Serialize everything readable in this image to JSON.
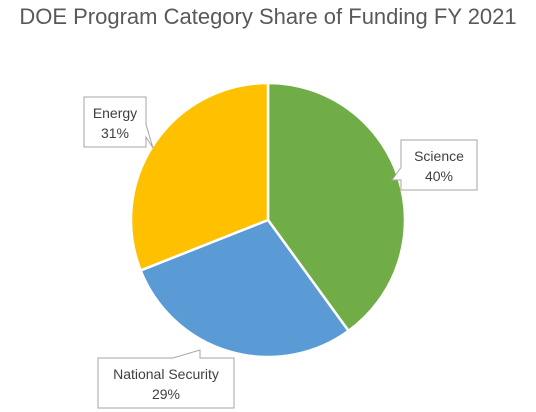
{
  "chart_data": {
    "type": "pie",
    "title": "DOE Program Category Share of Funding FY 2021",
    "slices": [
      {
        "label": "Science",
        "percent_label": "40%",
        "value": 40,
        "color": "#70ad47"
      },
      {
        "label": "National Security",
        "percent_label": "29%",
        "value": 29,
        "color": "#5b9bd5"
      },
      {
        "label": "Energy",
        "percent_label": "31%",
        "value": 31,
        "color": "#ffc000"
      }
    ],
    "legend": "none",
    "data_labels": "callouts"
  }
}
